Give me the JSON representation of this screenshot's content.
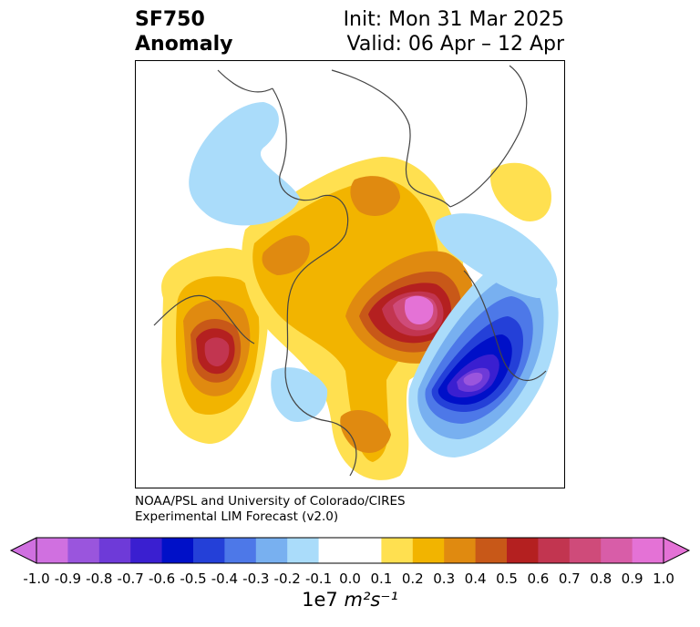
{
  "header": {
    "title_line1": "SF750",
    "title_line2": "Anomaly",
    "init": "Init: Mon 31 Mar 2025",
    "valid": "Valid: 06 Apr – 12 Apr"
  },
  "credit": {
    "line1": "NOAA/PSL and University of Colorado/CIRES",
    "line2": "Experimental LIM Forecast (v2.0)"
  },
  "colorbar": {
    "levels": [
      -1.0,
      -0.9,
      -0.8,
      -0.7,
      -0.6,
      -0.5,
      -0.4,
      -0.3,
      -0.2,
      -0.1,
      0.0,
      0.1,
      0.2,
      0.3,
      0.4,
      0.5,
      0.6,
      0.7,
      0.8,
      0.9,
      1.0
    ],
    "tick_labels": [
      "-1.0",
      "-0.9",
      "-0.8",
      "-0.7",
      "-0.6",
      "-0.5",
      "-0.4",
      "-0.3",
      "-0.2",
      "-0.1",
      "0.0",
      "0.1",
      "0.2",
      "0.3",
      "0.4",
      "0.5",
      "0.6",
      "0.7",
      "0.8",
      "0.9",
      "1.0"
    ],
    "colors": [
      "#d070e0",
      "#9a55dd",
      "#6e3ad8",
      "#3a1fd0",
      "#0010c8",
      "#2440d8",
      "#4d78e8",
      "#78b0f0",
      "#aadcfa",
      "#ffffff",
      "#ffffff",
      "#ffe050",
      "#f2b400",
      "#e08a10",
      "#c85818",
      "#b42020",
      "#c23550",
      "#cf4b7a",
      "#d85da8",
      "#e472d6"
    ],
    "under_color": "#d070e0",
    "over_color": "#e472d6",
    "unit_prefix": "1e7",
    "unit_expr": "m²s⁻¹"
  },
  "map": {
    "projection": "north-polar-stereographic",
    "field": "750 hPa streamfunction anomaly",
    "features": [
      {
        "region": "Northeast Pacific",
        "sign": "positive",
        "peak": 0.7
      },
      {
        "region": "Hudson Bay / Canada",
        "sign": "positive",
        "peak": 0.3
      },
      {
        "region": "Central North America",
        "sign": "positive",
        "peak": 0.4
      },
      {
        "region": "Greenland / Baffin",
        "sign": "positive",
        "peak": 1.0
      },
      {
        "region": "North Atlantic",
        "sign": "negative",
        "peak": -0.9
      },
      {
        "region": "Northern Europe",
        "sign": "negative",
        "peak": -0.2
      },
      {
        "region": "Western Siberia",
        "sign": "positive",
        "peak": 0.1
      },
      {
        "region": "Bering Sea / Alaska",
        "sign": "negative",
        "peak": -0.1
      }
    ]
  }
}
